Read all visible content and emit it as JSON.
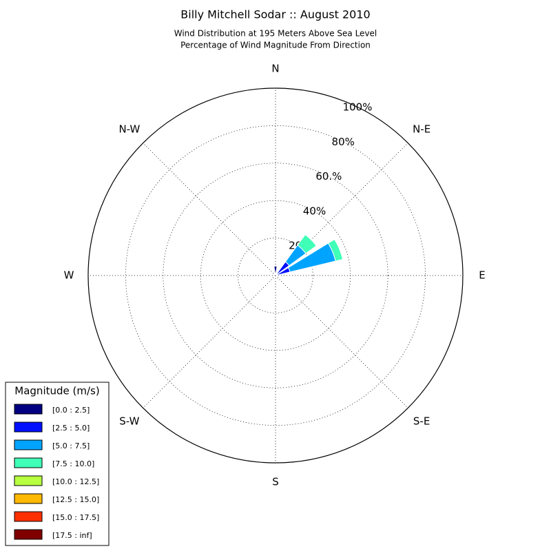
{
  "chart_data": {
    "type": "windrose",
    "title": "Billy Mitchell Sodar :: August 2010",
    "subtitle": [
      "Wind Distribution at 195 Meters Above Sea Level",
      "Percentage of Wind Magnitude From Direction"
    ],
    "categories": [
      "N",
      null,
      "N-E",
      null,
      "E",
      null,
      "S-E",
      null,
      "S",
      null,
      "S-W",
      null,
      "W",
      null,
      "N-W",
      null
    ],
    "rlim": [
      0,
      100
    ],
    "rticks": [
      {
        "value": 20,
        "label": "20%"
      },
      {
        "value": 40,
        "label": "40%"
      },
      {
        "value": 60,
        "label": "60.%"
      },
      {
        "value": 80,
        "label": "80%"
      },
      {
        "value": 100,
        "label": "100%"
      }
    ],
    "grid": true,
    "legend_title": "Magnitude (m/s)",
    "legend": "lower left",
    "series": [
      {
        "name": "[0.0 : 2.5]",
        "color": "#000080",
        "values": [
          5,
          0,
          1,
          1,
          0,
          0,
          0,
          0,
          0,
          0,
          0,
          0,
          0,
          0,
          0,
          0
        ]
      },
      {
        "name": "[2.5 : 5.0]",
        "color": "#0010ff",
        "values": [
          0,
          0,
          8,
          7,
          0,
          0,
          0,
          0,
          0,
          0,
          0,
          0,
          0,
          0,
          0,
          0
        ]
      },
      {
        "name": "[5.0 : 7.5]",
        "color": "#00a4ff",
        "values": [
          0,
          0,
          11,
          25,
          0,
          0,
          0,
          0,
          0,
          0,
          0,
          0,
          0,
          0,
          0,
          0
        ]
      },
      {
        "name": "[7.5 : 10.0]",
        "color": "#40ffb7",
        "values": [
          0,
          0,
          7,
          4,
          0,
          0,
          0,
          0,
          0,
          0,
          0,
          0,
          0,
          0,
          0,
          0
        ]
      },
      {
        "name": "[10.0 : 12.5]",
        "color": "#b7ff40",
        "values": [
          0,
          0,
          0,
          0,
          0,
          0,
          0,
          0,
          0,
          0,
          0,
          0,
          0,
          0,
          0,
          0
        ]
      },
      {
        "name": "[12.5 : 15.0]",
        "color": "#ffb900",
        "values": [
          0,
          0,
          0,
          0,
          0,
          0,
          0,
          0,
          0,
          0,
          0,
          0,
          0,
          0,
          0,
          0
        ]
      },
      {
        "name": "[15.0 : 17.5]",
        "color": "#ff3000",
        "values": [
          0,
          0,
          0,
          0,
          0,
          0,
          0,
          0,
          0,
          0,
          0,
          0,
          0,
          0,
          0,
          0
        ]
      },
      {
        "name": "[17.5 : inf]",
        "color": "#800000",
        "values": [
          0,
          0,
          0,
          0,
          0,
          0,
          0,
          0,
          0,
          0,
          0,
          0,
          0,
          0,
          0,
          0
        ]
      }
    ]
  }
}
